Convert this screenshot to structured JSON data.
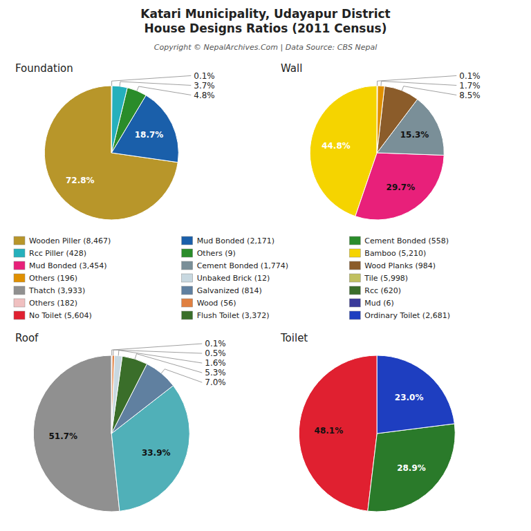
{
  "title": "Katari Municipality, Udayapur District\nHouse Designs Ratios (2011 Census)",
  "subtitle": "Copyright © NepalArchives.Com | Data Source: CBS Nepal",
  "chart_data": [
    {
      "type": "pie",
      "title": "Foundation",
      "values": [
        72.8,
        18.7,
        4.8,
        3.7,
        0.1
      ],
      "value_labels": [
        "72.8%",
        "18.7%",
        "4.8%",
        "3.7%",
        "0.1%"
      ],
      "colors": [
        "#b8962a",
        "#1a5faa",
        "#2a8c2a",
        "#25b0bc",
        "#aaaaaa"
      ],
      "data_labels": true
    },
    {
      "type": "pie",
      "title": "Wall",
      "values": [
        44.8,
        29.7,
        15.3,
        8.5,
        1.7,
        0.1
      ],
      "value_labels": [
        "44.8%",
        "29.7%",
        "15.3%",
        "8.5%",
        "1.7%",
        "0.1%"
      ],
      "colors": [
        "#f5d400",
        "#e8207a",
        "#7a8f98",
        "#8b5c2a",
        "#e09000",
        "#999999"
      ],
      "data_labels": true
    },
    {
      "type": "pie",
      "title": "Roof",
      "values": [
        51.7,
        33.9,
        7.0,
        5.3,
        1.6,
        0.5,
        0.1
      ],
      "value_labels": [
        "51.7%",
        "33.9%",
        "7.0%",
        "5.3%",
        "1.6%",
        "0.5%",
        "0.1%"
      ],
      "colors": [
        "#909090",
        "#50b0b8",
        "#6080a0",
        "#3a6e2a",
        "#c8d8e0",
        "#e08040",
        "#f0c0c0"
      ],
      "data_labels": true
    },
    {
      "type": "pie",
      "title": "Toilet",
      "values": [
        48.1,
        28.9,
        23.0
      ],
      "value_labels": [
        "48.1%",
        "28.9%",
        "23.0%"
      ],
      "colors": [
        "#e02030",
        "#2a7a2a",
        "#1e3ec0"
      ],
      "data_labels": true
    }
  ],
  "legend_entries": [
    {
      "name": "Wooden Piller (8,467)",
      "color": "#b8962a"
    },
    {
      "name": "Rcc Piller (428)",
      "color": "#25b0bc"
    },
    {
      "name": "Mud Bonded (3,454)",
      "color": "#e8207a"
    },
    {
      "name": "Others (196)",
      "color": "#e09000"
    },
    {
      "name": "Thatch (3,933)",
      "color": "#909090"
    },
    {
      "name": "Others (182)",
      "color": "#f0c0c0"
    },
    {
      "name": "No Toilet (5,604)",
      "color": "#e02030"
    },
    {
      "name": "Mud Bonded (2,171)",
      "color": "#1a5faa"
    },
    {
      "name": "Others (9)",
      "color": "#2a8c2a"
    },
    {
      "name": "Cement Bonded (1,774)",
      "color": "#7a8f98"
    },
    {
      "name": "Unbaked Brick (12)",
      "color": "#c8d8e0"
    },
    {
      "name": "Galvanized (814)",
      "color": "#6080a0"
    },
    {
      "name": "Wood (56)",
      "color": "#e08040"
    },
    {
      "name": "Flush Toilet (3,372)",
      "color": "#3a6e2a"
    },
    {
      "name": "Cement Bonded (558)",
      "color": "#2a8c2a"
    },
    {
      "name": "Bamboo (5,210)",
      "color": "#f5d400"
    },
    {
      "name": "Wood Planks (984)",
      "color": "#8b5c2a"
    },
    {
      "name": "Tile (5,998)",
      "color": "#c0c060"
    },
    {
      "name": "Rcc (620)",
      "color": "#3a6e2a"
    },
    {
      "name": "Mud (6)",
      "color": "#3a3a9a"
    },
    {
      "name": "Ordinary Toilet (2,681)",
      "color": "#1e3ec0"
    }
  ]
}
